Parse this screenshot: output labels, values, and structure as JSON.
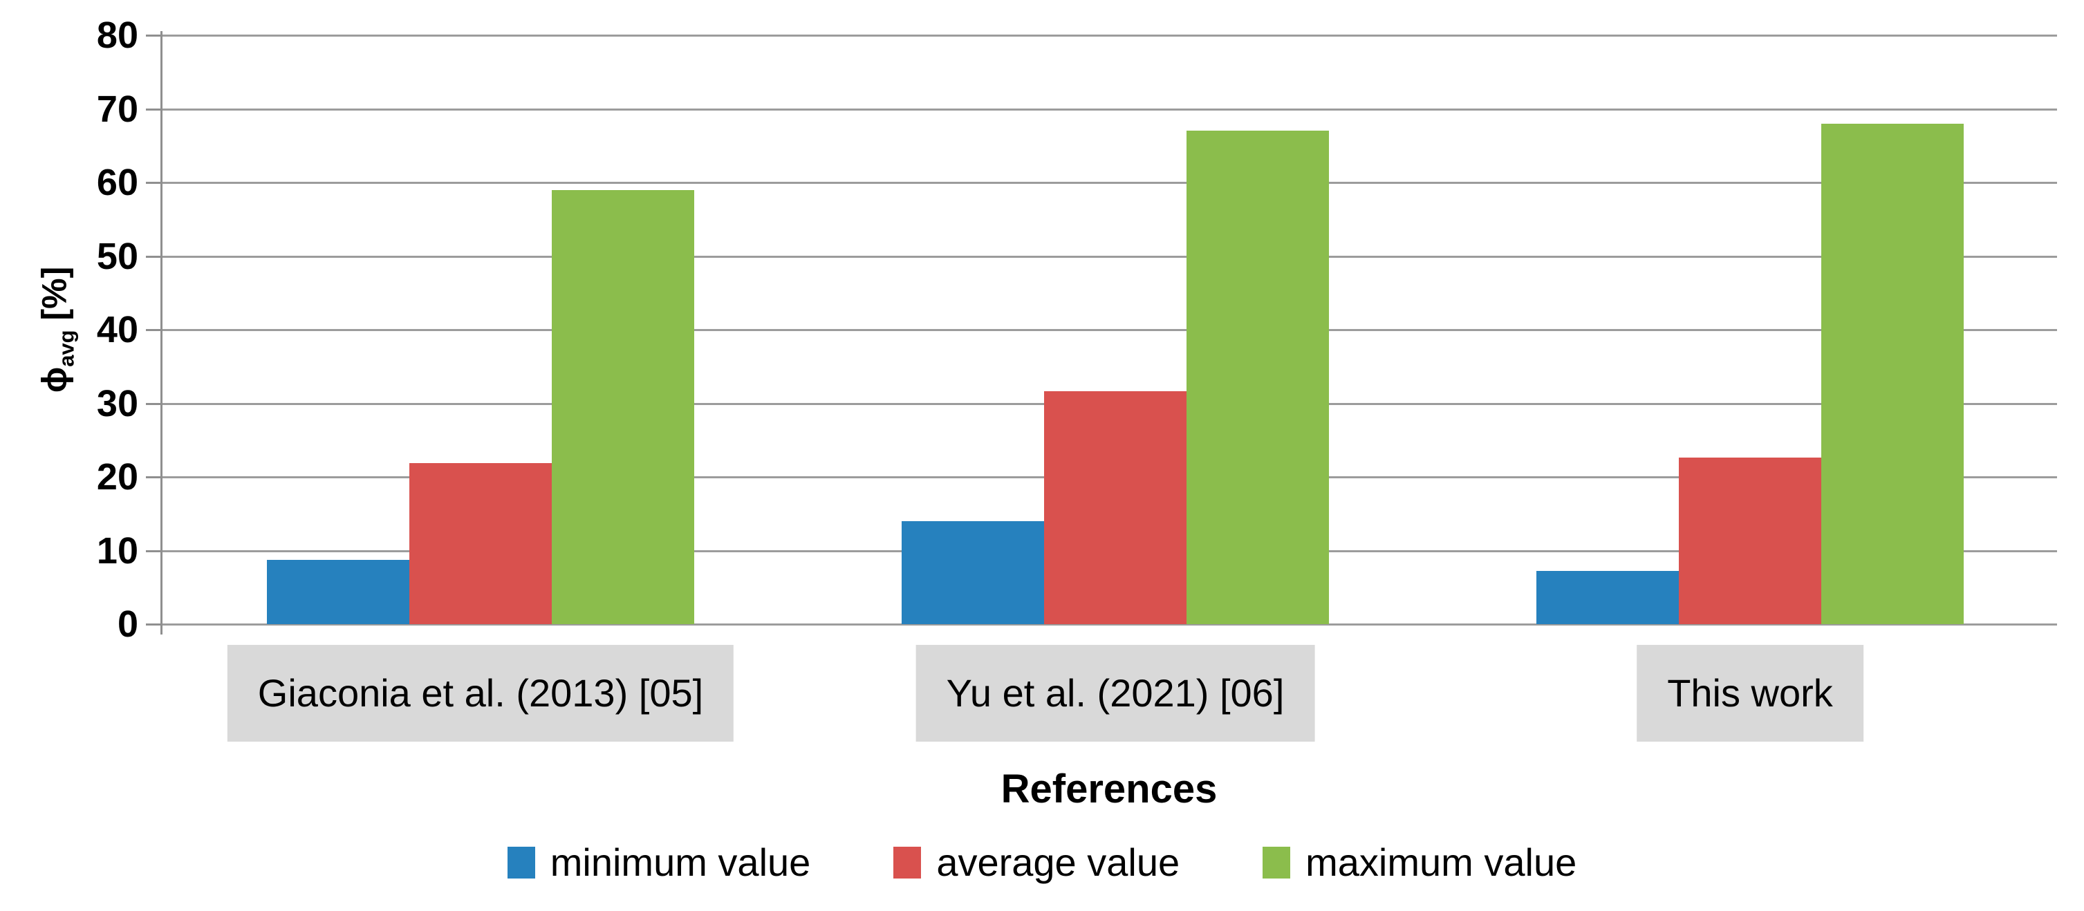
{
  "chart_data": {
    "type": "bar",
    "title": "",
    "categories": [
      "Giaconia et al. (2013) [05]",
      "Yu et al. (2021) [06]",
      "This work"
    ],
    "series": [
      {
        "name": "minimum value",
        "color": "#2681BE",
        "values": [
          8.7,
          14,
          7.2
        ]
      },
      {
        "name": "average value",
        "color": "#D9514E",
        "values": [
          21.9,
          31.6,
          22.6
        ]
      },
      {
        "name": "maximum value",
        "color": "#8BBD4C",
        "values": [
          59,
          67,
          68
        ]
      }
    ],
    "xlabel": "References",
    "ylabel": {
      "symbol": "ϕ",
      "subscript": "avg",
      "unit": "[%]"
    },
    "ylim": [
      0,
      80
    ],
    "yticks": [
      0,
      10,
      20,
      30,
      40,
      50,
      60,
      70,
      80
    ],
    "grid": true,
    "legend_position": "bottom",
    "gridline_color": "#9C9C9C",
    "axis_color": "#8F8F8F",
    "category_box_bg": "#D9D9D9",
    "text_color": "#000000"
  }
}
